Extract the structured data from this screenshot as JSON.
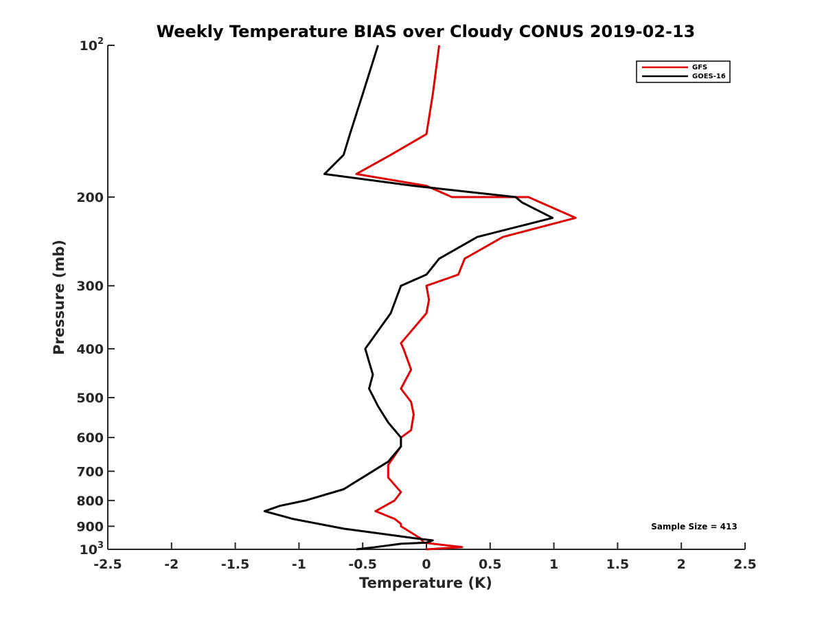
{
  "chart_data": {
    "type": "line",
    "title": "Weekly Temperature BIAS over Cloudy CONUS 2019-02-13",
    "xlabel": "Temperature (K)",
    "ylabel": "Pressure (mb)",
    "xlim": [
      -2.5,
      2.5
    ],
    "ylim": [
      100,
      1000
    ],
    "y_scale": "log",
    "y_reversed": true,
    "grid": false,
    "legend_position": "top-right",
    "x_ticks": [
      -2.5,
      -2,
      -1.5,
      -1,
      -0.5,
      0,
      0.5,
      1,
      1.5,
      2,
      2.5
    ],
    "x_tick_labels": [
      "-2.5",
      "-2",
      "-1.5",
      "-1",
      "-0.5",
      "0",
      "0.5",
      "1",
      "1.5",
      "2",
      "2.5"
    ],
    "y_ticks": [
      {
        "value": 100,
        "base": "10",
        "exp": "2"
      },
      {
        "value": 200,
        "label": "200"
      },
      {
        "value": 300,
        "label": "300"
      },
      {
        "value": 400,
        "label": "400"
      },
      {
        "value": 500,
        "label": "500"
      },
      {
        "value": 600,
        "label": "600"
      },
      {
        "value": 700,
        "label": "700"
      },
      {
        "value": 800,
        "label": "800"
      },
      {
        "value": 900,
        "label": "900"
      },
      {
        "value": 1000,
        "base": "10",
        "exp": "3"
      }
    ],
    "annotation": "Sample Size = 413",
    "series": [
      {
        "name": "GFS",
        "color": "#e00000",
        "points": [
          [
            0.1,
            100
          ],
          [
            0.05,
            125
          ],
          [
            0.0,
            150
          ],
          [
            -0.28,
            165
          ],
          [
            -0.55,
            180
          ],
          [
            0.0,
            190
          ],
          [
            0.2,
            200
          ],
          [
            0.8,
            200
          ],
          [
            1.17,
            220
          ],
          [
            0.6,
            240
          ],
          [
            0.3,
            265
          ],
          [
            0.25,
            285
          ],
          [
            0.0,
            300
          ],
          [
            0.02,
            320
          ],
          [
            0.0,
            340
          ],
          [
            -0.2,
            390
          ],
          [
            -0.18,
            400
          ],
          [
            -0.12,
            440
          ],
          [
            -0.2,
            480
          ],
          [
            -0.12,
            510
          ],
          [
            -0.1,
            540
          ],
          [
            -0.12,
            580
          ],
          [
            -0.2,
            600
          ],
          [
            -0.2,
            625
          ],
          [
            -0.3,
            680
          ],
          [
            -0.3,
            720
          ],
          [
            -0.2,
            770
          ],
          [
            -0.25,
            800
          ],
          [
            -0.4,
            840
          ],
          [
            -0.25,
            870
          ],
          [
            -0.2,
            890
          ],
          [
            -0.2,
            900
          ],
          [
            -0.05,
            950
          ],
          [
            -0.02,
            970
          ],
          [
            0.28,
            990
          ],
          [
            0.0,
            1000
          ]
        ]
      },
      {
        "name": "GOES-16",
        "color": "#000000",
        "points": [
          [
            -0.38,
            100
          ],
          [
            -0.5,
            125
          ],
          [
            -0.6,
            150
          ],
          [
            -0.65,
            165
          ],
          [
            -0.8,
            180
          ],
          [
            -0.1,
            190
          ],
          [
            0.7,
            200
          ],
          [
            0.75,
            205
          ],
          [
            0.99,
            220
          ],
          [
            0.4,
            240
          ],
          [
            0.1,
            265
          ],
          [
            0.0,
            285
          ],
          [
            -0.2,
            300
          ],
          [
            -0.28,
            340
          ],
          [
            -0.48,
            400
          ],
          [
            -0.42,
            450
          ],
          [
            -0.45,
            480
          ],
          [
            -0.38,
            520
          ],
          [
            -0.3,
            560
          ],
          [
            -0.2,
            600
          ],
          [
            -0.2,
            625
          ],
          [
            -0.3,
            670
          ],
          [
            -0.5,
            720
          ],
          [
            -0.65,
            760
          ],
          [
            -0.95,
            800
          ],
          [
            -1.15,
            820
          ],
          [
            -1.27,
            840
          ],
          [
            -1.05,
            870
          ],
          [
            -0.65,
            910
          ],
          [
            -0.1,
            950
          ],
          [
            0.05,
            960
          ],
          [
            0.0,
            970
          ],
          [
            -0.2,
            975
          ],
          [
            -0.4,
            990
          ],
          [
            -0.55,
            1000
          ]
        ]
      }
    ]
  }
}
